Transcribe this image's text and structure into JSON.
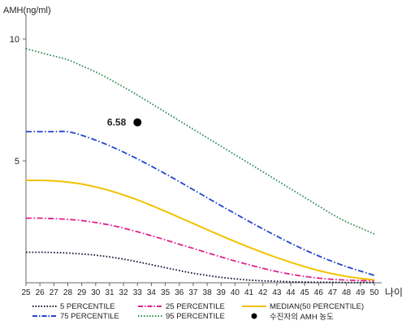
{
  "chart_data": {
    "type": "line",
    "title": "",
    "ylabel": "AMH(ng/ml)",
    "xlabel": "나이",
    "ylim": [
      0,
      11
    ],
    "xlim": [
      25,
      50
    ],
    "yticks": [
      5,
      10
    ],
    "x": [
      25,
      26,
      27,
      28,
      29,
      30,
      31,
      32,
      33,
      34,
      35,
      36,
      37,
      38,
      39,
      40,
      41,
      42,
      43,
      44,
      45,
      46,
      47,
      48,
      49,
      50
    ],
    "grid": false,
    "legend_position": "bottom",
    "series": [
      {
        "name": "5 PERCENTILE",
        "color": "#111133",
        "style": "dotted",
        "values": [
          1.25,
          1.25,
          1.24,
          1.22,
          1.18,
          1.13,
          1.06,
          0.97,
          0.86,
          0.74,
          0.62,
          0.5,
          0.39,
          0.3,
          0.22,
          0.16,
          0.11,
          0.08,
          0.06,
          0.04,
          0.03,
          0.02,
          0.02,
          0.01,
          0.01,
          0.01
        ]
      },
      {
        "name": "25 PERCENTILE",
        "color": "#e0218a",
        "style": "dashdot",
        "values": [
          2.65,
          2.65,
          2.63,
          2.6,
          2.55,
          2.47,
          2.37,
          2.24,
          2.09,
          1.93,
          1.76,
          1.58,
          1.41,
          1.23,
          1.06,
          0.89,
          0.74,
          0.59,
          0.46,
          0.35,
          0.26,
          0.19,
          0.14,
          0.11,
          0.09,
          0.08
        ]
      },
      {
        "name": "MEDIAN(50 PERCENTILE)",
        "color": "#f2c200",
        "style": "solid",
        "values": [
          4.2,
          4.2,
          4.18,
          4.13,
          4.05,
          3.93,
          3.78,
          3.6,
          3.4,
          3.17,
          2.93,
          2.68,
          2.43,
          2.18,
          1.93,
          1.69,
          1.46,
          1.24,
          1.03,
          0.84,
          0.66,
          0.5,
          0.37,
          0.26,
          0.18,
          0.12
        ]
      },
      {
        "name": "75 PERCENTILE",
        "color": "#2244cc",
        "style": "dashdot",
        "values": [
          6.2,
          6.2,
          6.2,
          6.2,
          6.05,
          5.85,
          5.62,
          5.36,
          5.08,
          4.78,
          4.47,
          4.15,
          3.82,
          3.49,
          3.16,
          2.84,
          2.52,
          2.21,
          1.91,
          1.62,
          1.35,
          1.1,
          0.87,
          0.66,
          0.48,
          0.3
        ]
      },
      {
        "name": "95 PERCENTILE",
        "color": "#2e8b57",
        "style": "dotted",
        "values": [
          9.6,
          9.45,
          9.3,
          9.15,
          8.9,
          8.65,
          8.35,
          8.03,
          7.7,
          7.35,
          7.0,
          6.65,
          6.3,
          5.95,
          5.6,
          5.25,
          4.9,
          4.55,
          4.2,
          3.85,
          3.5,
          3.15,
          2.8,
          2.5,
          2.25,
          2.0
        ]
      }
    ],
    "marker": {
      "name": "수진자의 AMH 농도",
      "x": 33,
      "y": 6.58,
      "label": "6.58",
      "color": "#000000"
    }
  }
}
